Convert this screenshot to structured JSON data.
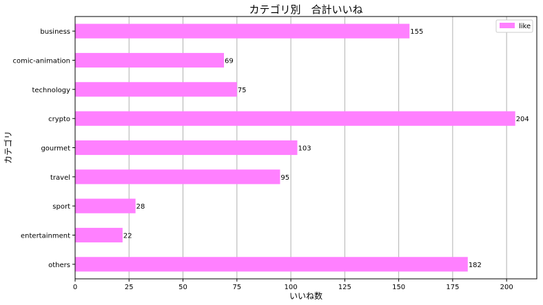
{
  "chart_data": {
    "type": "bar",
    "orientation": "horizontal",
    "title": "カテゴリ別　合計いいね",
    "xlabel": "いいね数",
    "ylabel": "カテゴリ",
    "categories": [
      "business",
      "comic-animation",
      "technology",
      "crypto",
      "gourmet",
      "travel",
      "sport",
      "entertainment",
      "others"
    ],
    "series": [
      {
        "name": "like",
        "values": [
          155,
          69,
          75,
          204,
          103,
          95,
          28,
          22,
          182
        ],
        "color": "#ff80ff"
      }
    ],
    "xlim": [
      0,
      214
    ],
    "xticks": [
      0,
      25,
      50,
      75,
      100,
      125,
      150,
      175,
      200
    ],
    "grid": "x",
    "legend": "top-right"
  }
}
